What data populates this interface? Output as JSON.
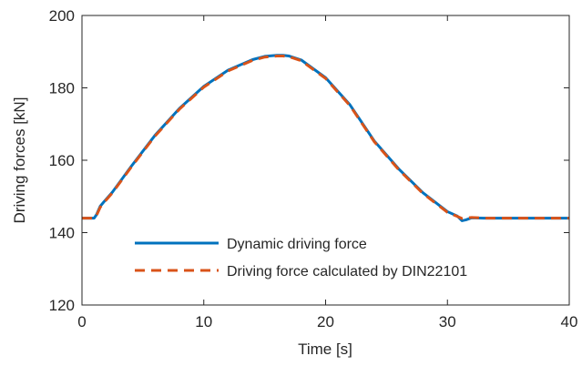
{
  "chart_data": {
    "type": "line",
    "title": "",
    "xlabel": "Time [s]",
    "ylabel": "Driving forces  [kN]",
    "xlim": [
      0,
      40
    ],
    "ylim": [
      120,
      200
    ],
    "xticks": [
      0,
      10,
      20,
      30,
      40
    ],
    "yticks": [
      120,
      140,
      160,
      180,
      200
    ],
    "xtick_labels": [
      "0",
      "10",
      "20",
      "30",
      "40"
    ],
    "ytick_labels": [
      "120",
      "140",
      "160",
      "180",
      "200"
    ],
    "grid": false,
    "legend_position": "lower-left",
    "series": [
      {
        "name": "Dynamic driving force",
        "color": "#0072BD",
        "style": "solid",
        "x": [
          0,
          1.0,
          1.2,
          1.5,
          1.8,
          2.5,
          4,
          6,
          8,
          10,
          12,
          14,
          15,
          16,
          16.5,
          17,
          18,
          20,
          22,
          24,
          26,
          28,
          30,
          30.8,
          31.2,
          31.5,
          32,
          33,
          35,
          40
        ],
        "y": [
          144.0,
          144.0,
          145.0,
          147.3,
          148.5,
          151.2,
          158.1,
          166.9,
          174.3,
          180.4,
          184.9,
          187.8,
          188.7,
          189.0,
          189.0,
          188.8,
          187.7,
          182.8,
          175.3,
          165.3,
          157.6,
          151.0,
          145.8,
          144.6,
          143.3,
          143.5,
          144.1,
          144.0,
          144.0,
          144.0
        ]
      },
      {
        "name": "Driving force calculated by DIN22101",
        "color": "#D95319",
        "style": "dashed",
        "x": [
          0,
          1.0,
          1.2,
          1.5,
          1.8,
          2.5,
          4,
          6,
          8,
          10,
          12,
          14,
          15,
          16,
          16.5,
          17,
          18,
          20,
          22,
          24,
          26,
          28,
          30,
          30.8,
          31.2,
          31.5,
          32,
          33,
          35,
          40
        ],
        "y": [
          144.0,
          144.0,
          144.8,
          147.0,
          148.3,
          151.0,
          157.9,
          166.7,
          174.1,
          180.2,
          184.7,
          187.6,
          188.5,
          188.8,
          188.8,
          188.6,
          187.5,
          182.6,
          175.1,
          165.1,
          157.4,
          150.8,
          145.6,
          144.5,
          143.9,
          144.0,
          144.2,
          144.0,
          144.0,
          144.0
        ]
      }
    ]
  }
}
